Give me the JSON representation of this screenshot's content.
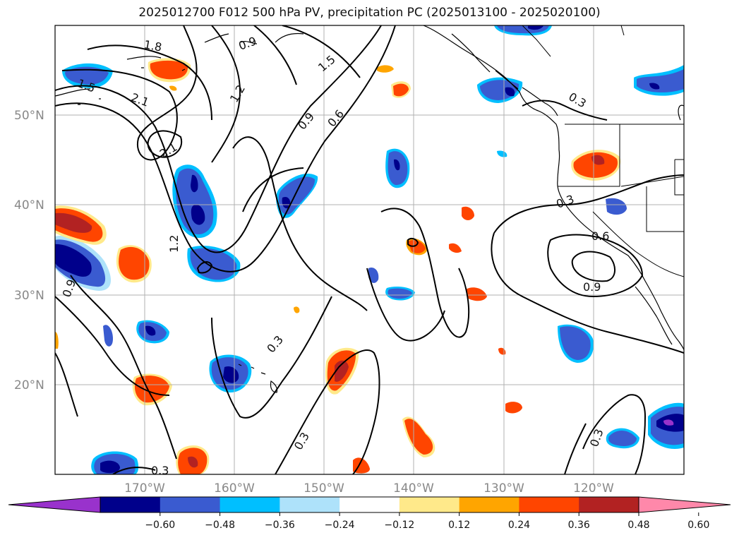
{
  "title": "2025012700 F012 500 hPa PV, precipitation PC (2025013100 - 2025020100)",
  "lat_labels": [
    "50°N",
    "40°N",
    "30°N",
    "20°N"
  ],
  "lon_labels": [
    "170°W",
    "160°W",
    "150°W",
    "140°W",
    "130°W",
    "120°W"
  ],
  "contour_labels": [
    "1.8",
    "0.9",
    "1.5",
    "1.2",
    "2.1",
    "2.1",
    "1.5",
    "0.9",
    "0.6",
    "0.3",
    "1.2",
    "0.3",
    "0.6",
    "0.9",
    "0.3",
    "0.3",
    "0.3",
    "0.3",
    "0.9"
  ],
  "colorbar": {
    "ticks": [
      "−0.60",
      "−0.48",
      "−0.36",
      "−0.24",
      "−0.12",
      "0.12",
      "0.24",
      "0.36",
      "0.48",
      "0.60"
    ],
    "colors": [
      "#9932cc",
      "#00008b",
      "#3a5bd0",
      "#00bfff",
      "#aee2fa",
      "#ffffff",
      "#ffe98a",
      "#ffa500",
      "#ff4500",
      "#b22222",
      "#ff88aa"
    ]
  },
  "colors": {
    "land_outline": "#000000",
    "grid": "#b0b0b0",
    "contour": "#000000"
  }
}
